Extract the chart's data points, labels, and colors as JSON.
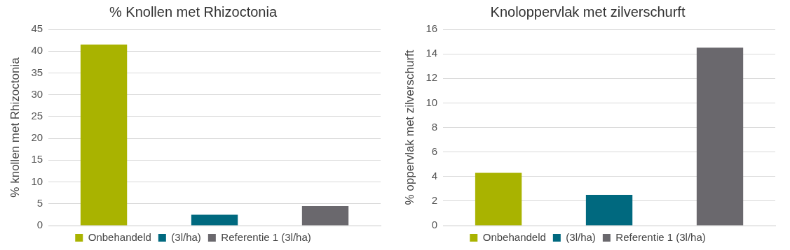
{
  "chart_data": [
    {
      "type": "bar",
      "title": "% Knollen met Rhizoctonia",
      "ylabel": "% knollen met Rhizoctonia",
      "categories": [
        null,
        null,
        null
      ],
      "series": [
        {
          "name": "Onbehandeld",
          "color": "#a9b300",
          "values": [
            41.5,
            null,
            null
          ]
        },
        {
          "name": "(3l/ha)",
          "color": "#00697f",
          "values": [
            null,
            2.5,
            null
          ]
        },
        {
          "name": "Referentie 1 (3l/ha)",
          "color": "#6a686d",
          "values": [
            null,
            null,
            4.5
          ]
        }
      ],
      "ylim": [
        0,
        45
      ],
      "yticks": [
        0,
        5,
        10,
        15,
        20,
        25,
        30,
        35,
        40,
        45
      ],
      "grid": "y",
      "legend": "bottom",
      "tick_labels": "y"
    },
    {
      "type": "bar",
      "title": "Knoloppervlak met zilverschurft",
      "ylabel": "% oppervlak met zilverschurft",
      "categories": [
        null,
        null,
        null
      ],
      "series": [
        {
          "name": "Onbehandeld",
          "color": "#a9b300",
          "values": [
            4.3,
            null,
            null
          ]
        },
        {
          "name": "(3l/ha)",
          "color": "#00697f",
          "values": [
            null,
            2.5,
            null
          ]
        },
        {
          "name": "Referentie 1 (3l/ha)",
          "color": "#6a686d",
          "values": [
            null,
            null,
            14.5
          ]
        }
      ],
      "ylim": [
        0,
        16
      ],
      "yticks": [
        0,
        2,
        4,
        6,
        8,
        10,
        12,
        14,
        16
      ],
      "grid": "y",
      "legend": "bottom",
      "tick_labels": "y"
    }
  ]
}
